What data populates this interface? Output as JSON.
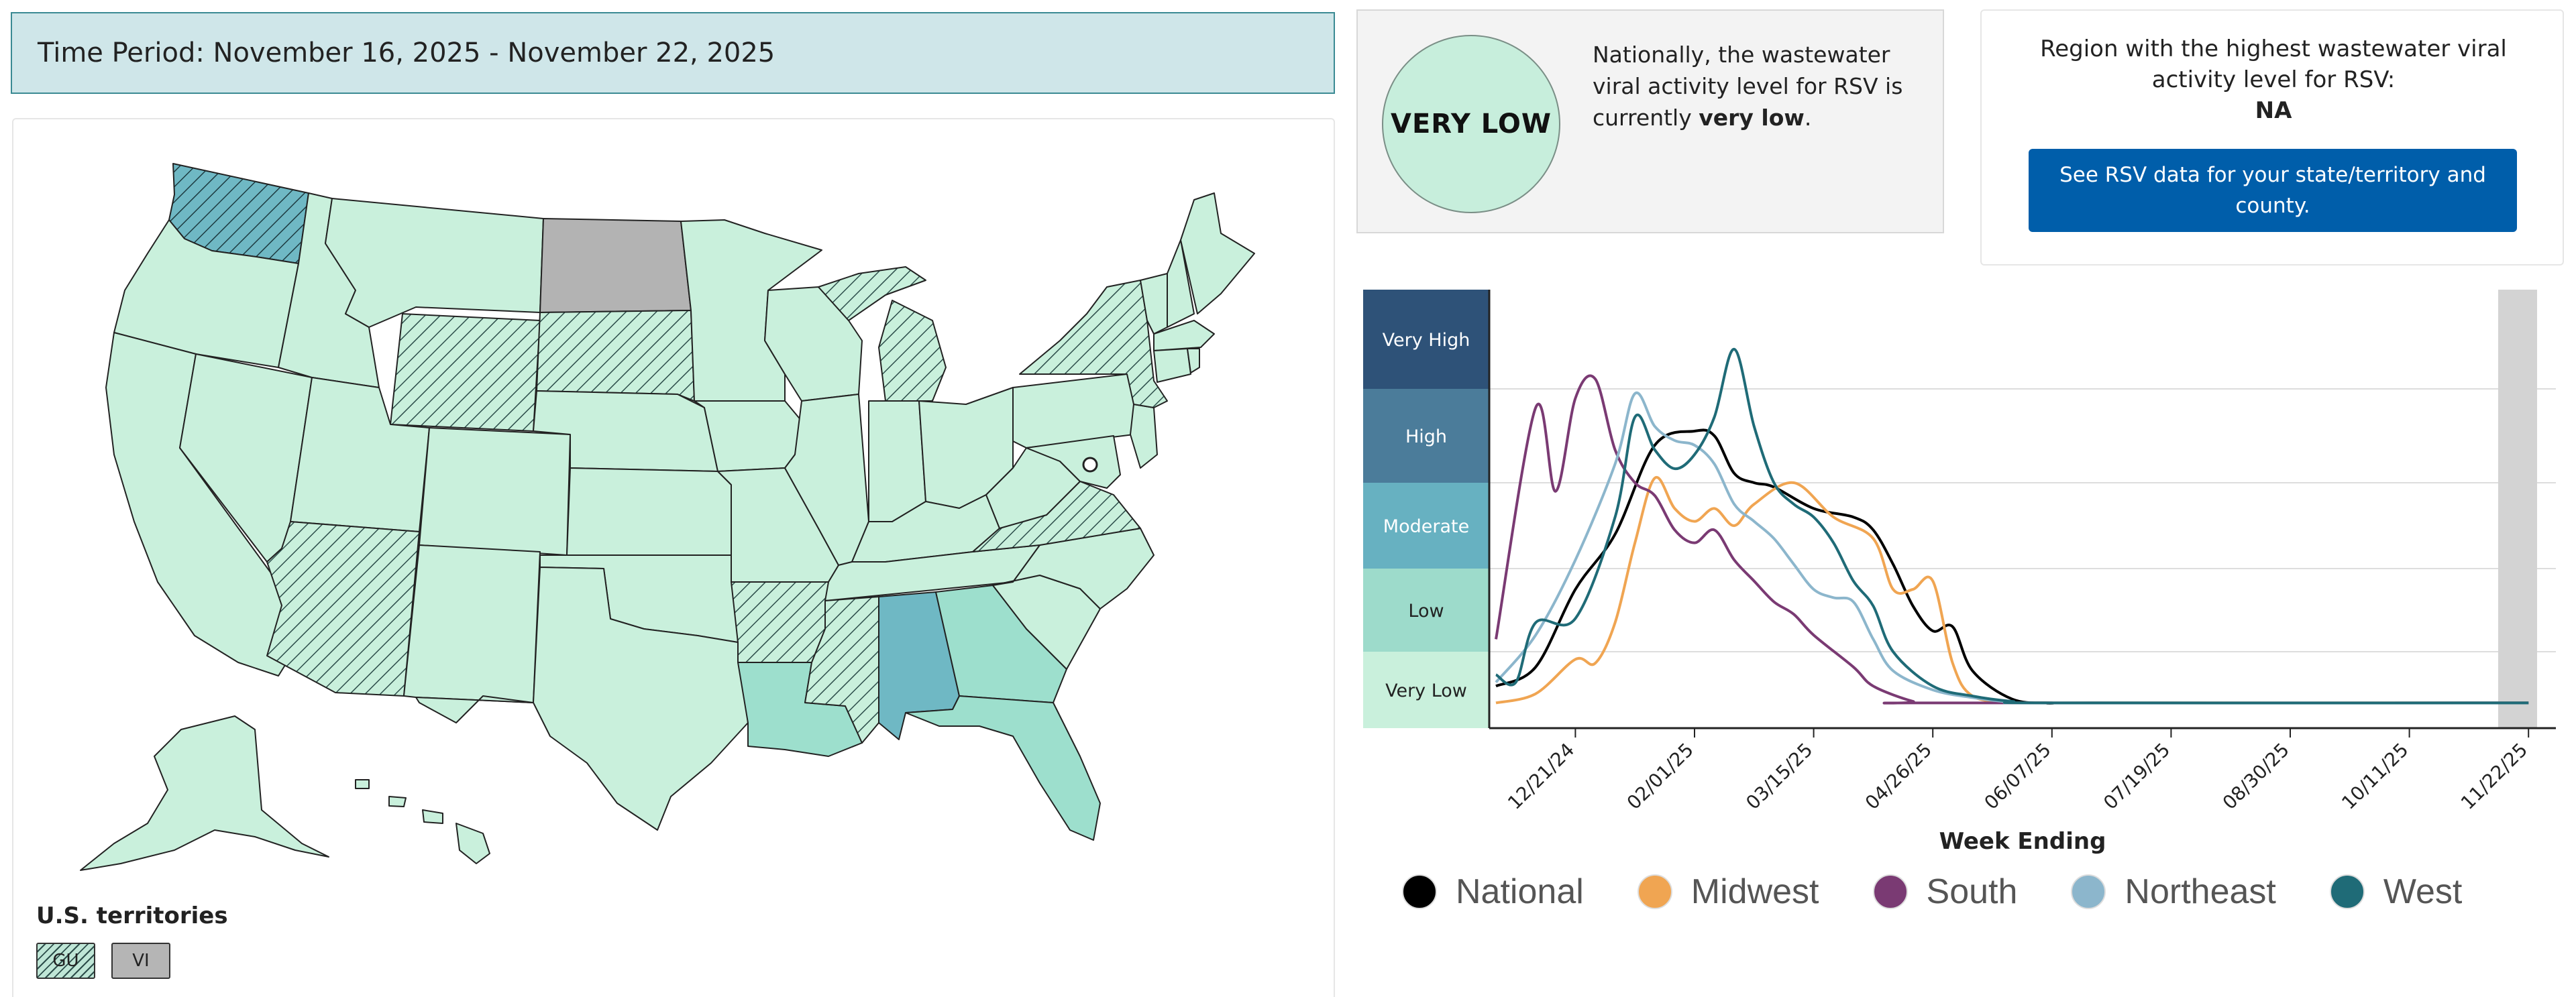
{
  "time_period": {
    "label": "Time Period: November 16, 2025 - November 22, 2025"
  },
  "national": {
    "level_badge": "VERY LOW",
    "text_prefix": "Nationally, the wastewater viral activity level for RSV is currently",
    "text_level": "very low",
    "text_suffix": "."
  },
  "region": {
    "label": "Region with the highest wastewater viral activity level for RSV:",
    "value": "NA",
    "button_label": "See RSV data for your state/territory and county."
  },
  "territories": {
    "title": "U.S. territories",
    "items": [
      {
        "code": "GU",
        "level": "very-low-hatched"
      },
      {
        "code": "VI",
        "level": "no-data"
      }
    ]
  },
  "map_colors": {
    "very_low": "#c9f0dc",
    "low": "#9ddfcd",
    "moderate": "#6fb8c4",
    "high": "#4f8fa3",
    "no_data": "#b3b3b3",
    "hatch": "#2c4d4a",
    "border": "#222222"
  },
  "chart_data": {
    "type": "line",
    "xlabel": "Week Ending",
    "ylabel": "",
    "level_bands": [
      "Very High",
      "High",
      "Moderate",
      "Low",
      "Very Low"
    ],
    "band_colors": [
      "#2e5278",
      "#4b7c9a",
      "#67b1c1",
      "#9ddbcb",
      "#c9f0dc"
    ],
    "x_ticks": [
      "12/21/24",
      "02/01/25",
      "03/15/25",
      "04/26/25",
      "06/07/25",
      "07/19/25",
      "08/30/25",
      "10/11/25",
      "11/22/25"
    ],
    "x_start": "2024-11-23",
    "y_range": [
      0,
      5
    ],
    "series": [
      {
        "name": "National",
        "color": "#000000",
        "points": [
          [
            0,
            0.55
          ],
          [
            2,
            0.8
          ],
          [
            4,
            1.75
          ],
          [
            6,
            2.4
          ],
          [
            8,
            3.4
          ],
          [
            10,
            3.55
          ],
          [
            11,
            3.5
          ],
          [
            12,
            3.1
          ],
          [
            13,
            3.0
          ],
          [
            14,
            2.95
          ],
          [
            16,
            2.7
          ],
          [
            18,
            2.6
          ],
          [
            19,
            2.45
          ],
          [
            20,
            2.05
          ],
          [
            21,
            1.55
          ],
          [
            22,
            1.25
          ],
          [
            23,
            1.3
          ],
          [
            24,
            0.75
          ],
          [
            26,
            0.38
          ],
          [
            28,
            0.33
          ],
          [
            30,
            0.33
          ],
          [
            52,
            0.33
          ]
        ]
      },
      {
        "name": "Midwest",
        "color": "#f0a552",
        "points": [
          [
            0,
            0.33
          ],
          [
            2,
            0.45
          ],
          [
            4,
            0.9
          ],
          [
            5,
            0.85
          ],
          [
            6,
            1.35
          ],
          [
            7,
            2.3
          ],
          [
            8,
            3.05
          ],
          [
            9,
            2.7
          ],
          [
            10,
            2.55
          ],
          [
            11,
            2.7
          ],
          [
            12,
            2.5
          ],
          [
            13,
            2.75
          ],
          [
            15,
            3.0
          ],
          [
            17,
            2.6
          ],
          [
            19,
            2.35
          ],
          [
            20,
            1.75
          ],
          [
            21,
            1.75
          ],
          [
            22,
            1.85
          ],
          [
            23,
            0.85
          ],
          [
            24,
            0.42
          ],
          [
            26,
            0.34
          ],
          [
            28,
            0.33
          ],
          [
            52,
            0.33
          ]
        ]
      },
      {
        "name": "South",
        "color": "#7a3a73",
        "points": [
          [
            0,
            1.15
          ],
          [
            2,
            3.8
          ],
          [
            3,
            2.9
          ],
          [
            4,
            3.9
          ],
          [
            5,
            4.1
          ],
          [
            6,
            3.35
          ],
          [
            7,
            3.0
          ],
          [
            8,
            2.85
          ],
          [
            9,
            2.45
          ],
          [
            10,
            2.3
          ],
          [
            11,
            2.45
          ],
          [
            12,
            2.1
          ],
          [
            13,
            1.85
          ],
          [
            14,
            1.6
          ],
          [
            15,
            1.45
          ],
          [
            16,
            1.2
          ],
          [
            18,
            0.8
          ],
          [
            19,
            0.55
          ],
          [
            21,
            0.35
          ],
          [
            22,
            0.33
          ],
          [
            52,
            0.33
          ]
        ]
      },
      {
        "name": "Northeast",
        "color": "#8cb6cc",
        "points": [
          [
            0,
            0.6
          ],
          [
            2,
            1.2
          ],
          [
            4,
            2.1
          ],
          [
            6,
            3.2
          ],
          [
            7,
            3.95
          ],
          [
            8,
            3.6
          ],
          [
            9,
            3.45
          ],
          [
            10,
            3.4
          ],
          [
            11,
            3.2
          ],
          [
            12,
            2.75
          ],
          [
            13,
            2.55
          ],
          [
            14,
            2.35
          ],
          [
            15,
            2.05
          ],
          [
            16,
            1.75
          ],
          [
            17,
            1.65
          ],
          [
            18,
            1.6
          ],
          [
            19,
            1.15
          ],
          [
            20,
            0.75
          ],
          [
            22,
            0.5
          ],
          [
            24,
            0.4
          ],
          [
            26,
            0.34
          ],
          [
            28,
            0.33
          ],
          [
            52,
            0.33
          ]
        ]
      },
      {
        "name": "West",
        "color": "#1f6b77",
        "points": [
          [
            0,
            0.7
          ],
          [
            1,
            0.6
          ],
          [
            2,
            1.35
          ],
          [
            4,
            1.4
          ],
          [
            6,
            2.6
          ],
          [
            7,
            3.7
          ],
          [
            8,
            3.35
          ],
          [
            9,
            3.15
          ],
          [
            10,
            3.3
          ],
          [
            11,
            3.7
          ],
          [
            12,
            4.4
          ],
          [
            13,
            3.6
          ],
          [
            14,
            3.0
          ],
          [
            15,
            2.75
          ],
          [
            16,
            2.6
          ],
          [
            17,
            2.3
          ],
          [
            18,
            1.85
          ],
          [
            19,
            1.55
          ],
          [
            20,
            1.0
          ],
          [
            22,
            0.55
          ],
          [
            24,
            0.42
          ],
          [
            26,
            0.35
          ],
          [
            28,
            0.33
          ],
          [
            52,
            0.33
          ]
        ]
      }
    ],
    "legend": [
      "National",
      "Midwest",
      "South",
      "Northeast",
      "West"
    ],
    "legend_position": "bottom"
  }
}
